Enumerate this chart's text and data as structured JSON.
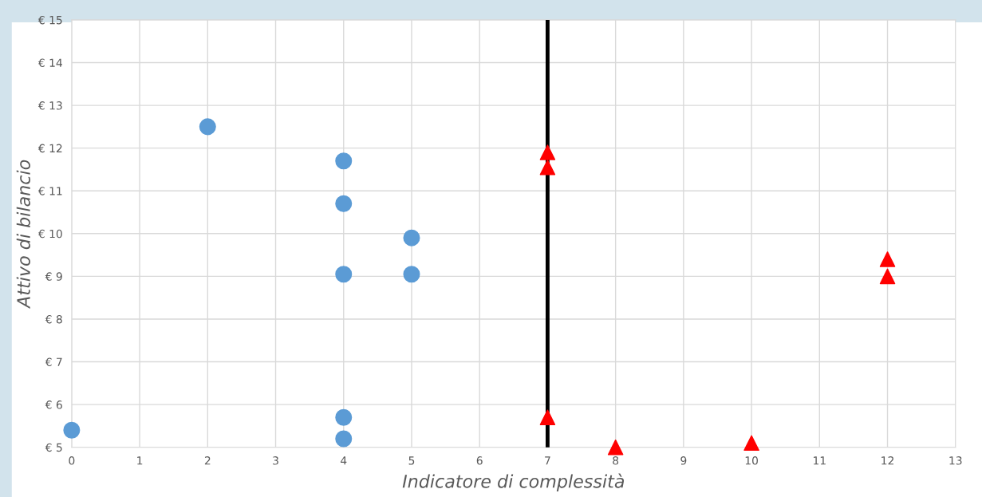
{
  "chart_data": {
    "type": "scatter",
    "xlabel": "Indicatore di complessità",
    "ylabel": "Attivo di bilancio",
    "xlim": [
      0,
      13
    ],
    "xticks": [
      0,
      1,
      2,
      3,
      4,
      5,
      6,
      7,
      8,
      9,
      10,
      11,
      12,
      13
    ],
    "ylim": [
      5,
      15
    ],
    "yticks": [
      {
        "value": 5,
        "label": "€ 5"
      },
      {
        "value": 6,
        "label": "€ 6"
      },
      {
        "value": 7,
        "label": "€ 7"
      },
      {
        "value": 8,
        "label": "€ 8"
      },
      {
        "value": 9,
        "label": "€ 9"
      },
      {
        "value": 10,
        "label": "€ 10"
      },
      {
        "value": 11,
        "label": "€ 11"
      },
      {
        "value": 12,
        "label": "€ 12"
      },
      {
        "value": 13,
        "label": "€ 13"
      },
      {
        "value": 14,
        "label": "€ 14"
      },
      {
        "value": 15,
        "label": "€ 15"
      }
    ],
    "grid": true,
    "legend": false,
    "series": [
      {
        "color": "#5b9bd5",
        "marker": "circle",
        "x": [
          0,
          2,
          4,
          4,
          5,
          4,
          5,
          4,
          4
        ],
        "values": [
          5.4,
          12.5,
          11.7,
          10.7,
          9.9,
          9.05,
          9.05,
          5.7,
          5.2
        ]
      },
      {
        "color": "#ff0000",
        "marker": "triangle",
        "x": [
          7,
          7,
          7,
          8,
          10,
          12,
          12
        ],
        "values": [
          11.9,
          11.55,
          5.7,
          5.0,
          5.1,
          9.4,
          9.0
        ]
      }
    ],
    "ref_lines": [
      {
        "axis": "x",
        "value": 7,
        "color": "#000000",
        "line_style": "solid"
      }
    ]
  }
}
